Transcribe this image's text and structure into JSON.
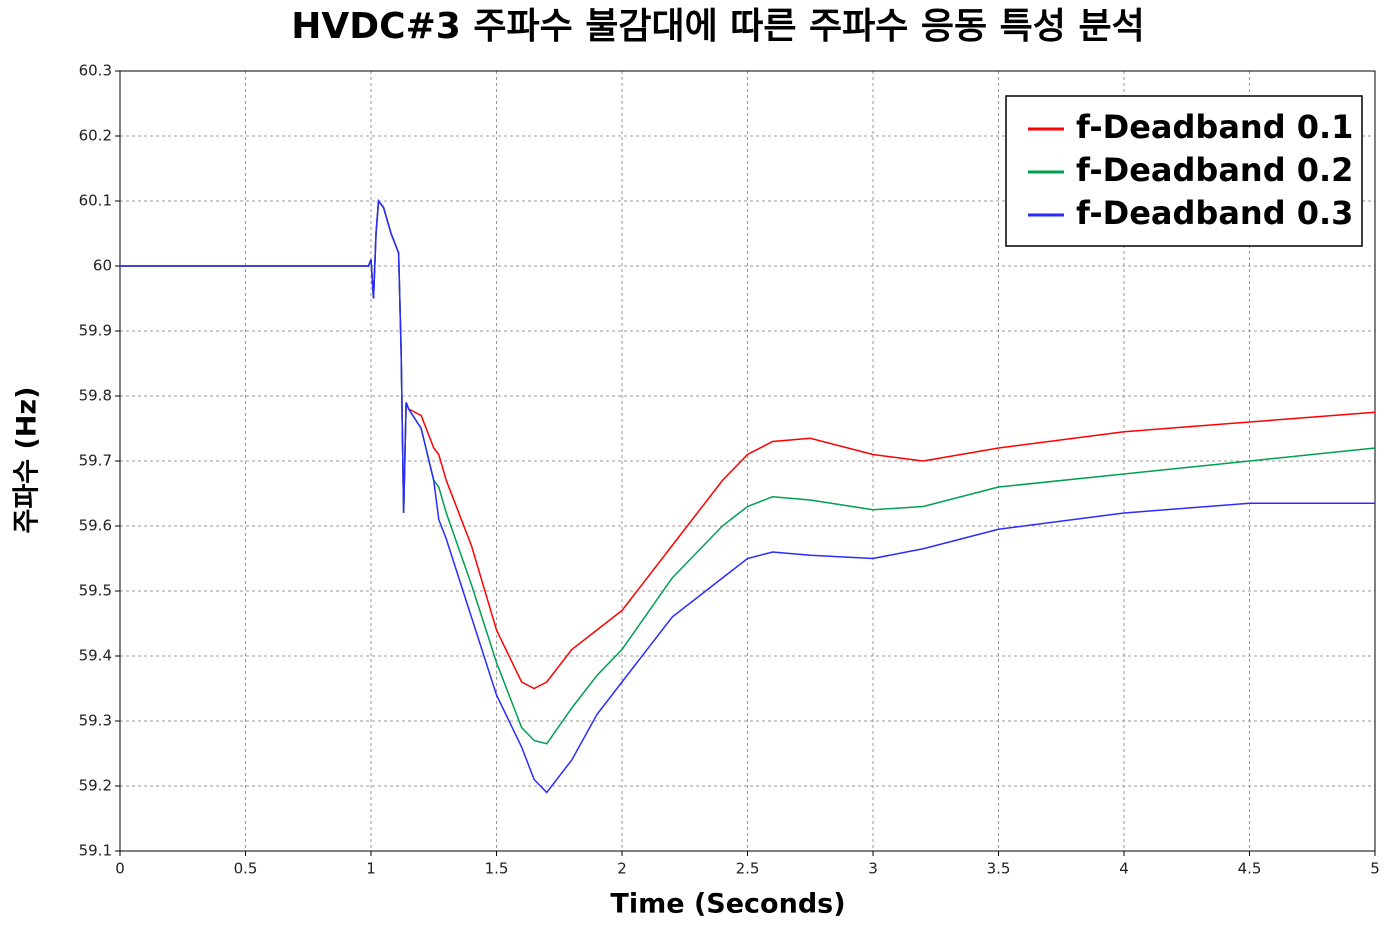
{
  "chart_data": {
    "type": "line",
    "title": "HVDC#3 주파수 불감대에 따른 주파수 응동 특성 분석",
    "x_label": "Time (Seconds)",
    "y_label": "주파수 (Hz)",
    "x": [
      0,
      0.99,
      1.0,
      1.01,
      1.02,
      1.03,
      1.05,
      1.08,
      1.11,
      1.12,
      1.13,
      1.14,
      1.15,
      1.2,
      1.25,
      1.27,
      1.3,
      1.4,
      1.5,
      1.6,
      1.65,
      1.7,
      1.8,
      1.9,
      2.0,
      2.2,
      2.4,
      2.5,
      2.6,
      2.75,
      3.0,
      3.2,
      3.5,
      4.0,
      4.5,
      5.0
    ],
    "series": [
      {
        "name": "f-Deadband 0.1",
        "color": "#ff0000",
        "values": [
          60,
          60,
          60.01,
          59.95,
          60.05,
          60.1,
          60.09,
          60.05,
          60.02,
          59.87,
          59.62,
          59.79,
          59.78,
          59.77,
          59.72,
          59.71,
          59.67,
          59.57,
          59.44,
          59.36,
          59.35,
          59.36,
          59.41,
          59.44,
          59.47,
          59.57,
          59.67,
          59.71,
          59.73,
          59.735,
          59.71,
          59.7,
          59.72,
          59.745,
          59.76,
          59.775
        ]
      },
      {
        "name": "f-Deadband 0.2",
        "color": "#00a050",
        "values": [
          60,
          60,
          60.01,
          59.95,
          60.05,
          60.1,
          60.09,
          60.05,
          60.02,
          59.87,
          59.62,
          59.79,
          59.78,
          59.75,
          59.67,
          59.66,
          59.62,
          59.51,
          59.39,
          59.29,
          59.27,
          59.265,
          59.32,
          59.37,
          59.41,
          59.52,
          59.6,
          59.63,
          59.645,
          59.64,
          59.625,
          59.63,
          59.66,
          59.68,
          59.7,
          59.72
        ]
      },
      {
        "name": "f-Deadband 0.3",
        "color": "#2b2bff",
        "values": [
          60,
          60,
          60.01,
          59.95,
          60.05,
          60.1,
          60.09,
          60.05,
          60.02,
          59.87,
          59.62,
          59.79,
          59.78,
          59.75,
          59.67,
          59.61,
          59.58,
          59.46,
          59.34,
          59.26,
          59.21,
          59.19,
          59.24,
          59.31,
          59.36,
          59.46,
          59.52,
          59.55,
          59.56,
          59.555,
          59.55,
          59.565,
          59.595,
          59.62,
          59.635,
          59.635
        ]
      }
    ],
    "xlim": [
      0,
      5
    ],
    "xticks": [
      0,
      0.5,
      1,
      1.5,
      2,
      2.5,
      3,
      3.5,
      4,
      4.5,
      5
    ],
    "ylim": [
      59.1,
      60.3
    ],
    "yticks": [
      59.1,
      59.2,
      59.3,
      59.4,
      59.5,
      59.6,
      59.7,
      59.8,
      59.9,
      60,
      60.1,
      60.2,
      60.3
    ],
    "grid": true,
    "legend": "upper right"
  }
}
